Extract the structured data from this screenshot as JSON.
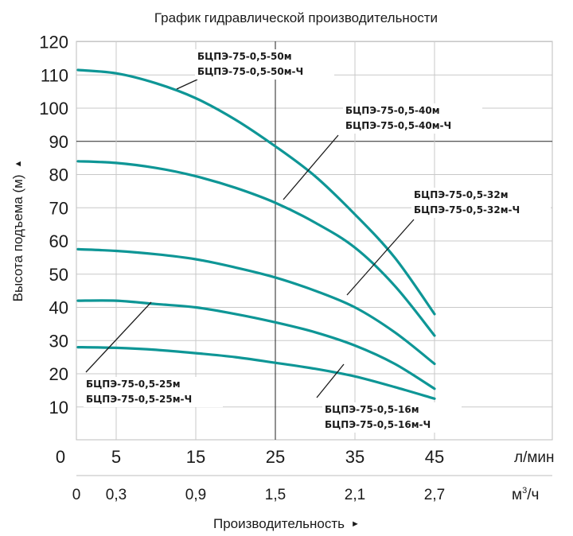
{
  "chart_data": {
    "type": "line",
    "title": "График гидравлической производительности",
    "ylabel": "Высота подъема (м)",
    "xlabel": "Производительность",
    "y_axis_arrow": "▲",
    "x_axis_arrow": "►",
    "ylim": [
      0,
      120
    ],
    "xlim": [
      0,
      50
    ],
    "y_ticks": [
      "10",
      "20",
      "30",
      "40",
      "50",
      "60",
      "70",
      "80",
      "90",
      "100",
      "110",
      "120"
    ],
    "x_ticks_lmin": [
      "0",
      "5",
      "15",
      "25",
      "35",
      "45"
    ],
    "x_ticks_m3h": [
      "0",
      "0,3",
      "0,9",
      "1,5",
      "2,1",
      "2,7"
    ],
    "x_unit_lmin": "л/мин",
    "x_unit_m3h": "м³/ч",
    "grid": true,
    "series_color": "#0e9696",
    "series": [
      {
        "name": "БЦПЭ-75-0,5-50м / БЦПЭ-75-0,5-50м-Ч",
        "x": [
          0,
          5,
          10,
          15,
          20,
          25,
          30,
          35,
          40,
          45
        ],
        "values": [
          111.5,
          110.5,
          107.5,
          103,
          96.5,
          88.5,
          79.5,
          68,
          55,
          38
        ]
      },
      {
        "name": "БЦПЭ-75-0,5-40м / БЦПЭ-75-0,5-40м-Ч",
        "x": [
          0,
          5,
          10,
          15,
          20,
          25,
          30,
          35,
          40,
          45
        ],
        "values": [
          84,
          83.5,
          82,
          79.5,
          76,
          71.5,
          65.5,
          58,
          46.5,
          31.5
        ]
      },
      {
        "name": "БЦПЭ-75-0,5-32м / БЦПЭ-75-0,5-32м-Ч",
        "x": [
          0,
          5,
          10,
          15,
          20,
          25,
          30,
          35,
          40,
          45
        ],
        "values": [
          57.5,
          57,
          56,
          54.5,
          52,
          49,
          45,
          40,
          32.5,
          23
        ]
      },
      {
        "name": "БЦПЭ-75-0,5-25м / БЦПЭ-75-0,5-25м-Ч",
        "x": [
          0,
          5,
          10,
          15,
          20,
          25,
          30,
          35,
          40,
          45
        ],
        "values": [
          42,
          42,
          41,
          40,
          38,
          35.5,
          32.5,
          28.5,
          23,
          15.5
        ]
      },
      {
        "name": "БЦПЭ-75-0,5-16м / БЦПЭ-75-0,5-16м-Ч",
        "x": [
          0,
          5,
          10,
          15,
          20,
          25,
          30,
          35,
          40,
          45
        ],
        "values": [
          28,
          27.8,
          27.2,
          26.2,
          25,
          23.3,
          21.5,
          19.2,
          16,
          12.5
        ]
      }
    ],
    "annotations": [
      {
        "line1": "БЦПЭ-75-0,5-50м",
        "line2": "БЦПЭ-75-0,5-50м-Ч"
      },
      {
        "line1": "БЦПЭ-75-0,5-40м",
        "line2": "БЦПЭ-75-0,5-40м-Ч"
      },
      {
        "line1": "БЦПЭ-75-0,5-32м",
        "line2": "БЦПЭ-75-0,5-32м-Ч"
      },
      {
        "line1": "БЦПЭ-75-0,5-25м",
        "line2": "БЦПЭ-75-0,5-25м-Ч"
      },
      {
        "line1": "БЦПЭ-75-0,5-16м",
        "line2": "БЦПЭ-75-0,5-16м-Ч"
      }
    ]
  }
}
